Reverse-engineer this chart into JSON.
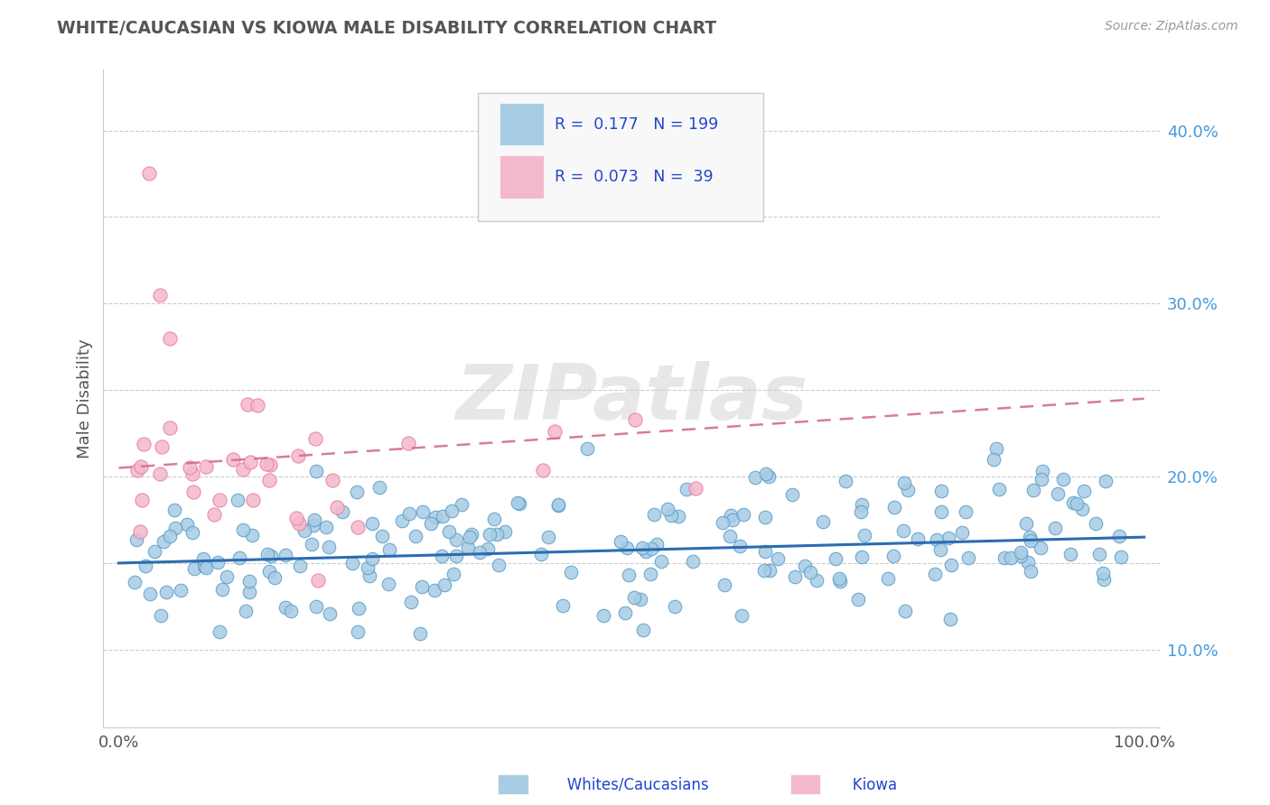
{
  "title": "WHITE/CAUCASIAN VS KIOWA MALE DISABILITY CORRELATION CHART",
  "source": "Source: ZipAtlas.com",
  "ylabel": "Male Disability",
  "ylim": [
    0.055,
    0.435
  ],
  "xlim": [
    -0.015,
    1.015
  ],
  "blue_R": 0.177,
  "blue_N": 199,
  "pink_R": 0.073,
  "pink_N": 39,
  "blue_color": "#a8cce4",
  "pink_color": "#f4b8cc",
  "blue_edge_color": "#5a9ec9",
  "pink_edge_color": "#e8809a",
  "blue_line_color": "#2b6cb0",
  "pink_line_color": "#d46e8a",
  "grid_color": "#cccccc",
  "watermark_color": "#d0d0d0",
  "ytick_color": "#4499dd",
  "text_color": "#555555"
}
